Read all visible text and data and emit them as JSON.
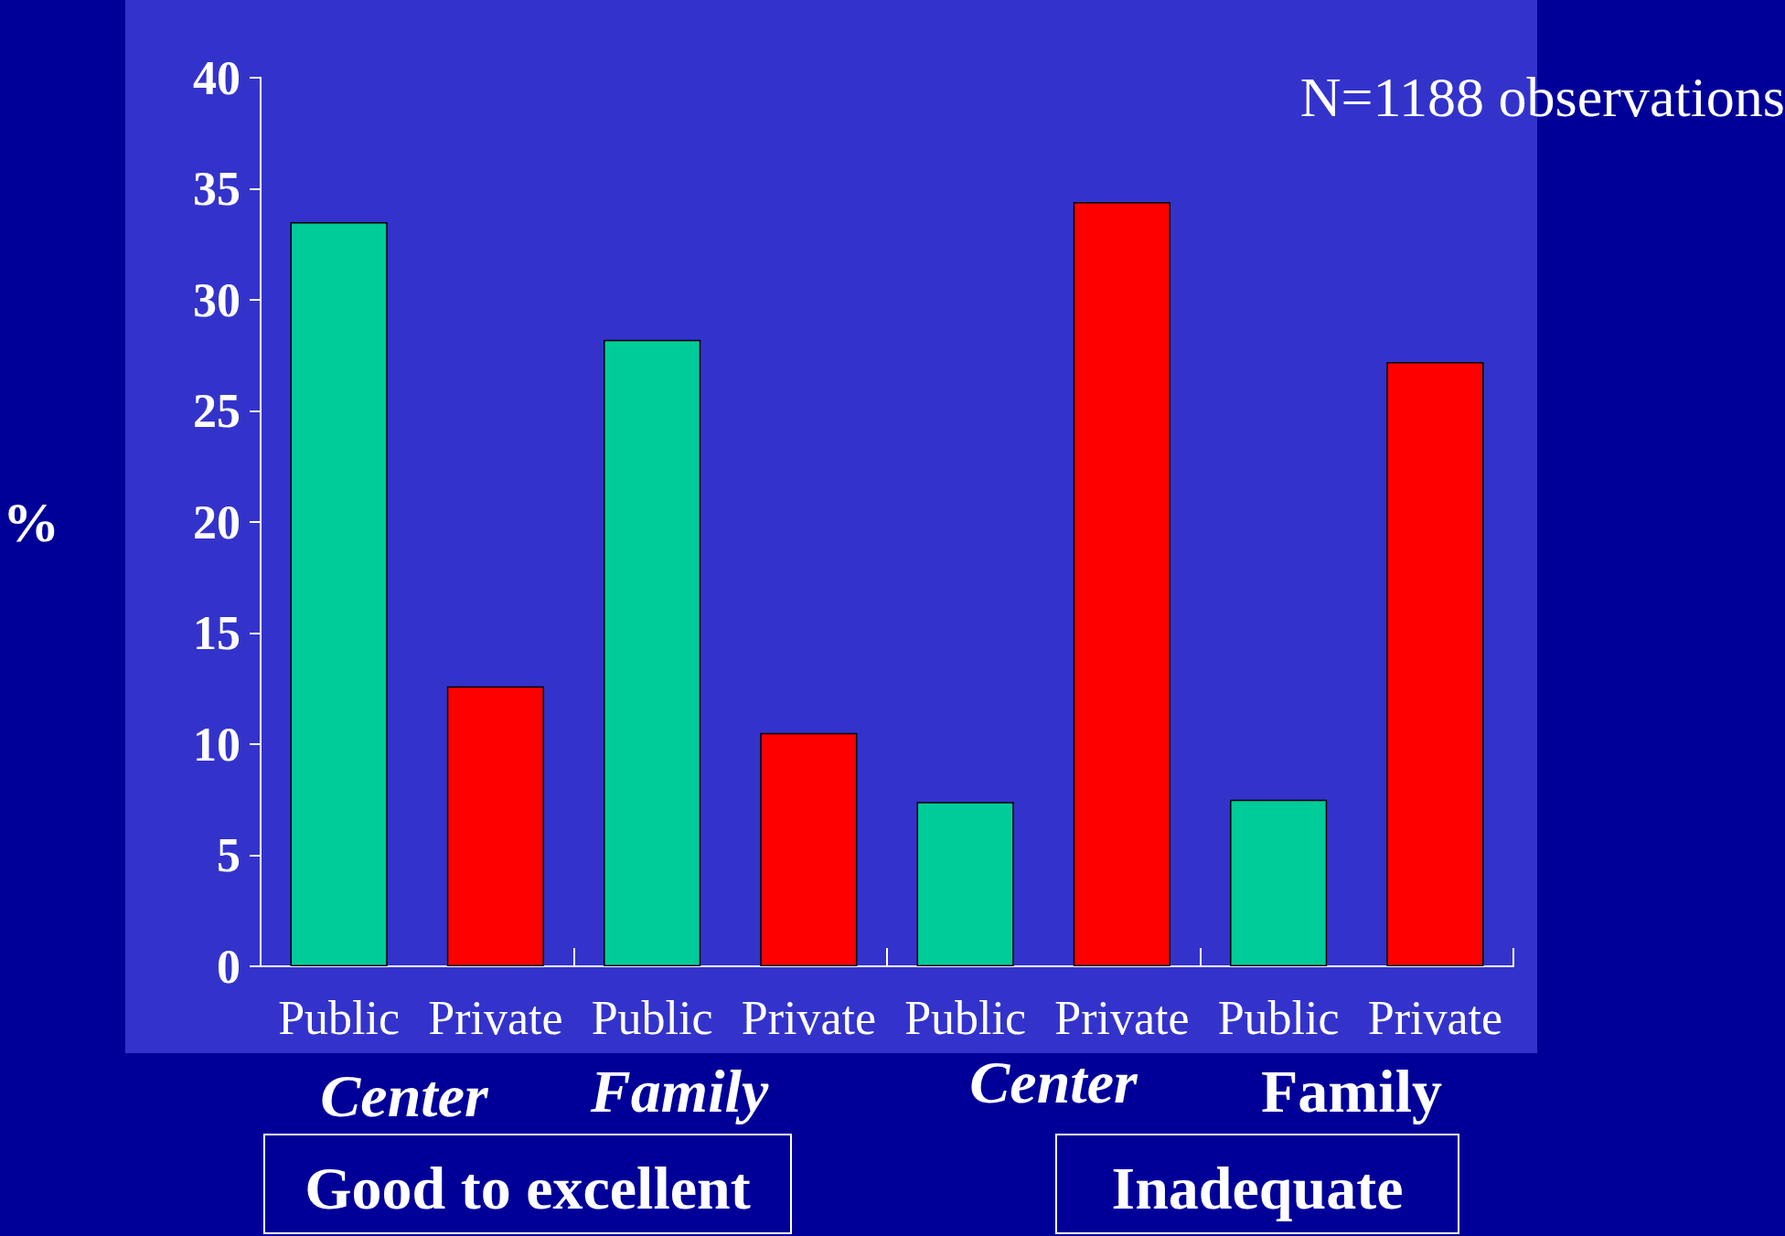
{
  "chart_data": {
    "type": "bar",
    "ylabel": "%",
    "categories": [
      "Public",
      "Private",
      "Public",
      "Private",
      "Public",
      "Private",
      "Public",
      "Private"
    ],
    "values": [
      33.5,
      12.6,
      28.2,
      10.5,
      7.4,
      34.4,
      7.5,
      27.2
    ],
    "colors": [
      "#00cc99",
      "#ff0000",
      "#00cc99",
      "#ff0000",
      "#00cc99",
      "#ff0000",
      "#00cc99",
      "#ff0000"
    ],
    "ylim": [
      0,
      40
    ],
    "yticks": [
      0,
      5,
      10,
      15,
      20,
      25,
      30,
      35,
      40
    ],
    "grid": false,
    "annotations": [
      "N=1188 observations",
      "Center",
      "Family",
      "Center",
      "Family",
      "Good to excellent",
      "Inadequate"
    ]
  }
}
